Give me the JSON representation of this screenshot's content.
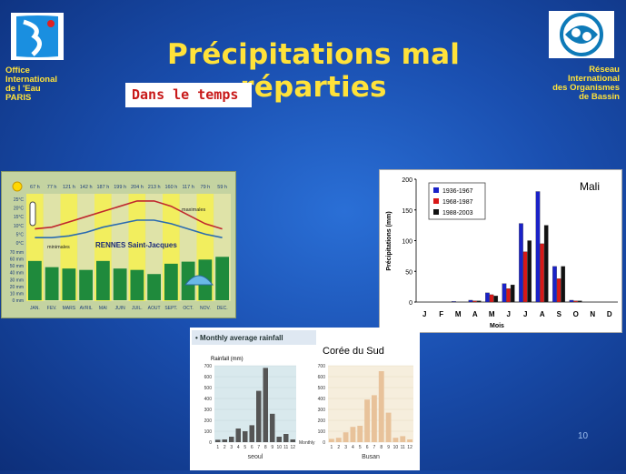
{
  "slide": {
    "title": "Précipitations mal réparties",
    "subtitle": "Dans le temps",
    "page_number": "10",
    "org_left": [
      "Office",
      "International",
      "de l 'Eau",
      "PARIS"
    ],
    "org_right": [
      "Réseau",
      "International",
      "des Organismes",
      "de Bassin"
    ]
  },
  "colors": {
    "background": "#1a4fb0",
    "title": "#ffe23a",
    "subtitle_text": "#c81a1a"
  },
  "icons": [
    "oieau-logo-icon",
    "riob-logo-icon",
    "sun-icon",
    "thermometer-icon",
    "umbrella-icon"
  ],
  "chart_data": [
    {
      "type": "bar",
      "title": "RENNES Saint-Jacques",
      "categories": [
        "JAN.",
        "FEV.",
        "MARS",
        "AVRIL",
        "MAI",
        "JUIN",
        "JUIL.",
        "AOUT",
        "SEPT.",
        "OCT.",
        "NOV.",
        "DEC."
      ],
      "sunshine_labels": [
        "67 h",
        "77 h",
        "121 h",
        "142 h",
        "187 h",
        "199 h",
        "204 h",
        "213 h",
        "160 h",
        "117 h",
        "79 h",
        "59 h"
      ],
      "temp_ticks": [
        "25°C",
        "20°C",
        "15°C",
        "10°C",
        "5°C",
        "0°C"
      ],
      "rain_ticks": [
        "70 mm",
        "60 mm",
        "50 mm",
        "40 mm",
        "30 mm",
        "20 mm",
        "10 mm",
        "0 mm"
      ],
      "series": [
        {
          "name": "maximales",
          "values": [
            8,
            9,
            12,
            15,
            18,
            21,
            24,
            24,
            21,
            16,
            11,
            8
          ]
        },
        {
          "name": "minimales",
          "values": [
            3,
            3,
            4,
            6,
            9,
            11,
            13,
            13,
            11,
            8,
            5,
            3
          ]
        },
        {
          "name": "",
          "values": [
            57,
            48,
            46,
            44,
            57,
            46,
            44,
            38,
            53,
            56,
            59,
            63
          ]
        }
      ],
      "ylim_temp": [
        0,
        25
      ],
      "ylim_rain": [
        0,
        70
      ]
    },
    {
      "type": "bar",
      "title": "Mali",
      "ylabel": "Précipitations (mm)",
      "xlabel": "Mois",
      "categories": [
        "J",
        "F",
        "M",
        "A",
        "M",
        "J",
        "J",
        "A",
        "S",
        "O",
        "N",
        "D"
      ],
      "ylim": [
        0,
        200
      ],
      "yticks": [
        "0",
        "50",
        "100",
        "150",
        "200"
      ],
      "series": [
        {
          "name": "1936-1967",
          "color": "#1a22c8",
          "values": [
            0,
            0,
            1,
            3,
            15,
            30,
            128,
            180,
            58,
            3,
            0,
            0
          ]
        },
        {
          "name": "1968-1987",
          "color": "#d81818",
          "values": [
            0,
            0,
            0,
            2,
            12,
            22,
            82,
            95,
            38,
            2,
            0,
            0
          ]
        },
        {
          "name": "1988-2003",
          "color": "#111111",
          "values": [
            0,
            0,
            0,
            2,
            10,
            28,
            100,
            125,
            58,
            2,
            0,
            0
          ]
        }
      ]
    },
    {
      "type": "bar",
      "title": "Monthly average rainfall",
      "annotation": "Corée du Sud",
      "ylabel": "Rainfall (mm)",
      "xlabel": "Monthly",
      "categories": [
        "1",
        "2",
        "3",
        "4",
        "5",
        "6",
        "7",
        "8",
        "9",
        "10",
        "11",
        "12"
      ],
      "yticks": [
        "0",
        "100",
        "200",
        "300",
        "400",
        "500",
        "600",
        "700"
      ],
      "ylim": [
        0,
        700
      ],
      "series": [
        {
          "name": "seoul",
          "color": "#555555",
          "values": [
            22,
            25,
            50,
            125,
            100,
            155,
            470,
            680,
            260,
            50,
            75,
            25
          ]
        },
        {
          "name": "Busan",
          "color": "#e8c29a",
          "values": [
            30,
            40,
            90,
            140,
            150,
            390,
            430,
            650,
            270,
            40,
            55,
            25
          ]
        }
      ]
    }
  ]
}
